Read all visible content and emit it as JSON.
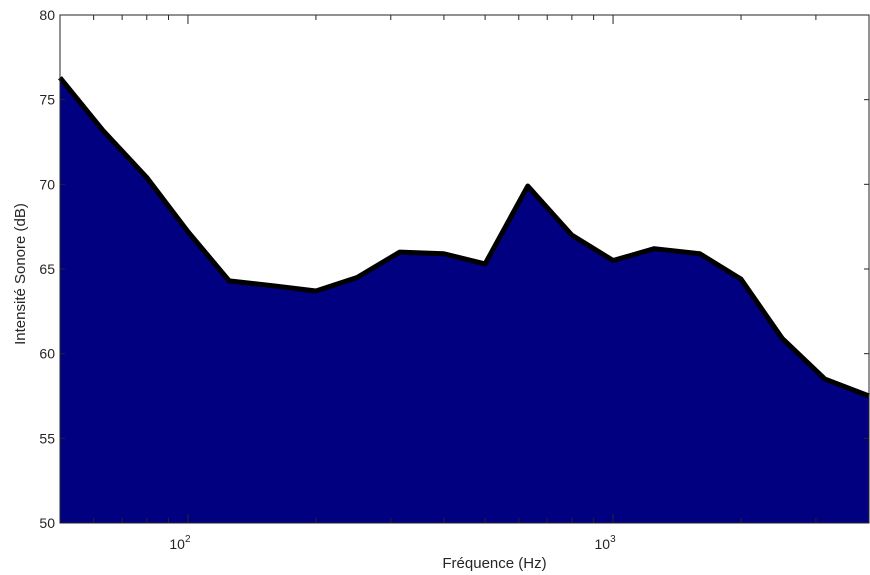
{
  "chart_data": {
    "type": "area",
    "title": "",
    "xlabel": "Fréquence (Hz)",
    "ylabel": "Intensité Sonore (dB)",
    "xscale": "log",
    "xlim": [
      50,
      4000
    ],
    "ylim": [
      50,
      80
    ],
    "yticks": [
      50,
      55,
      60,
      65,
      70,
      75,
      80
    ],
    "xticks": [
      {
        "value": 100,
        "base": "10",
        "exp": "2"
      },
      {
        "value": 1000,
        "base": "10",
        "exp": "3"
      }
    ],
    "grid": false,
    "colors": {
      "fill": "#000080",
      "line": "#000000",
      "axis": "#262626"
    },
    "x": [
      50,
      63,
      80,
      100,
      125,
      160,
      200,
      250,
      315,
      400,
      500,
      630,
      800,
      1000,
      1250,
      1600,
      2000,
      2500,
      3150,
      4000
    ],
    "y": [
      76.3,
      73.2,
      70.4,
      67.2,
      64.3,
      64.0,
      63.7,
      64.5,
      66.0,
      65.9,
      65.3,
      69.9,
      67.0,
      65.5,
      66.2,
      65.9,
      64.4,
      60.9,
      58.5,
      57.5
    ]
  }
}
